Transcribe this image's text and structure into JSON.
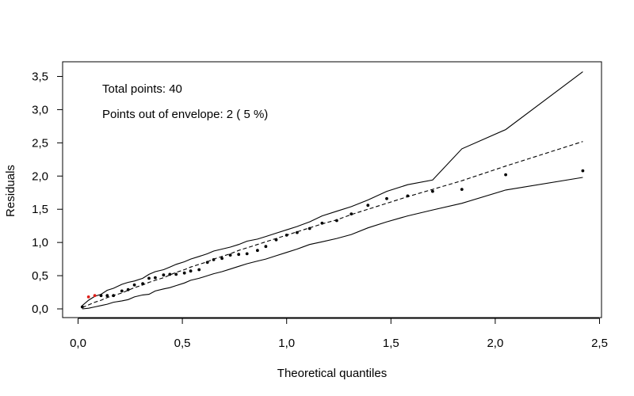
{
  "chart_data": {
    "type": "scatter",
    "title": "",
    "xlabel": "Theoretical quantiles",
    "ylabel": "Residuals",
    "xlim": [
      0.0,
      2.5
    ],
    "ylim": [
      0.0,
      3.5
    ],
    "xticks": [
      0.0,
      0.5,
      1.0,
      1.5,
      2.0,
      2.5
    ],
    "yticks": [
      0.0,
      0.5,
      1.0,
      1.5,
      2.0,
      2.5,
      3.0,
      3.5
    ],
    "xtick_labels": [
      "0,0",
      "0,5",
      "1,0",
      "1,5",
      "2,0",
      "2,5"
    ],
    "ytick_labels": [
      "0,0",
      "0,5",
      "1,0",
      "1,5",
      "2,0",
      "2,5",
      "3,0",
      "3,5"
    ],
    "grid": false,
    "annotations": [
      "Total points: 40",
      "Points out of envelope: 2 ( 5 %)"
    ],
    "colors": {
      "points": "#000000",
      "out_of_envelope": "#e0201b",
      "lines": "#000000"
    },
    "points": {
      "x": [
        0.02,
        0.05,
        0.08,
        0.11,
        0.14,
        0.17,
        0.21,
        0.24,
        0.27,
        0.31,
        0.34,
        0.37,
        0.41,
        0.44,
        0.47,
        0.51,
        0.54,
        0.58,
        0.62,
        0.65,
        0.69,
        0.73,
        0.77,
        0.81,
        0.86,
        0.9,
        0.95,
        1.0,
        1.05,
        1.11,
        1.17,
        1.24,
        1.31,
        1.39,
        1.48,
        1.58,
        1.7,
        1.84,
        2.05,
        2.42
      ],
      "y": [
        0.03,
        0.18,
        0.2,
        0.2,
        0.2,
        0.2,
        0.27,
        0.29,
        0.36,
        0.38,
        0.46,
        0.47,
        0.51,
        0.52,
        0.52,
        0.54,
        0.57,
        0.59,
        0.7,
        0.74,
        0.76,
        0.81,
        0.82,
        0.83,
        0.88,
        0.94,
        1.04,
        1.11,
        1.15,
        1.21,
        1.29,
        1.33,
        1.43,
        1.56,
        1.66,
        1.7,
        1.77,
        1.8,
        2.02,
        2.08
      ],
      "out_of_envelope_indices": [
        1,
        2
      ]
    },
    "envelope_upper": {
      "x": [
        0.02,
        0.05,
        0.08,
        0.11,
        0.14,
        0.17,
        0.21,
        0.24,
        0.27,
        0.31,
        0.34,
        0.37,
        0.41,
        0.44,
        0.47,
        0.51,
        0.54,
        0.58,
        0.62,
        0.65,
        0.69,
        0.73,
        0.77,
        0.81,
        0.86,
        0.9,
        0.95,
        1.0,
        1.05,
        1.11,
        1.17,
        1.24,
        1.31,
        1.39,
        1.48,
        1.58,
        1.7,
        1.84,
        2.05,
        2.42
      ],
      "y": [
        0.05,
        0.13,
        0.19,
        0.22,
        0.28,
        0.31,
        0.37,
        0.4,
        0.42,
        0.46,
        0.52,
        0.56,
        0.59,
        0.63,
        0.67,
        0.71,
        0.75,
        0.79,
        0.83,
        0.87,
        0.9,
        0.93,
        0.97,
        1.02,
        1.05,
        1.09,
        1.14,
        1.19,
        1.24,
        1.31,
        1.4,
        1.47,
        1.54,
        1.64,
        1.77,
        1.87,
        1.94,
        2.41,
        2.7,
        3.57
      ]
    },
    "envelope_lower": {
      "x": [
        0.02,
        0.05,
        0.08,
        0.11,
        0.14,
        0.17,
        0.21,
        0.24,
        0.27,
        0.31,
        0.34,
        0.37,
        0.41,
        0.44,
        0.47,
        0.51,
        0.54,
        0.58,
        0.62,
        0.65,
        0.69,
        0.73,
        0.77,
        0.81,
        0.86,
        0.9,
        0.95,
        1.0,
        1.05,
        1.11,
        1.17,
        1.24,
        1.31,
        1.39,
        1.48,
        1.58,
        1.7,
        1.84,
        2.05,
        2.42
      ],
      "y": [
        0.0,
        0.01,
        0.03,
        0.05,
        0.07,
        0.1,
        0.12,
        0.14,
        0.18,
        0.21,
        0.22,
        0.27,
        0.3,
        0.32,
        0.35,
        0.39,
        0.43,
        0.46,
        0.5,
        0.53,
        0.56,
        0.6,
        0.64,
        0.68,
        0.72,
        0.75,
        0.8,
        0.85,
        0.9,
        0.97,
        1.01,
        1.06,
        1.12,
        1.22,
        1.31,
        1.4,
        1.49,
        1.59,
        1.79,
        1.98
      ]
    },
    "median_line": {
      "x": [
        0.02,
        0.05,
        0.08,
        0.11,
        0.14,
        0.17,
        0.21,
        0.24,
        0.27,
        0.31,
        0.34,
        0.37,
        0.41,
        0.44,
        0.47,
        0.51,
        0.54,
        0.58,
        0.62,
        0.65,
        0.69,
        0.73,
        0.77,
        0.81,
        0.86,
        0.9,
        0.95,
        1.0,
        1.05,
        1.11,
        1.17,
        1.24,
        1.31,
        1.39,
        1.48,
        1.58,
        1.7,
        1.84,
        2.05,
        2.42
      ],
      "y": [
        0.02,
        0.06,
        0.1,
        0.13,
        0.17,
        0.2,
        0.24,
        0.28,
        0.32,
        0.36,
        0.4,
        0.43,
        0.47,
        0.51,
        0.55,
        0.59,
        0.63,
        0.67,
        0.71,
        0.75,
        0.79,
        0.83,
        0.88,
        0.92,
        0.97,
        1.01,
        1.06,
        1.11,
        1.16,
        1.22,
        1.28,
        1.34,
        1.42,
        1.5,
        1.59,
        1.69,
        1.8,
        1.93,
        2.15,
        2.52
      ]
    }
  }
}
